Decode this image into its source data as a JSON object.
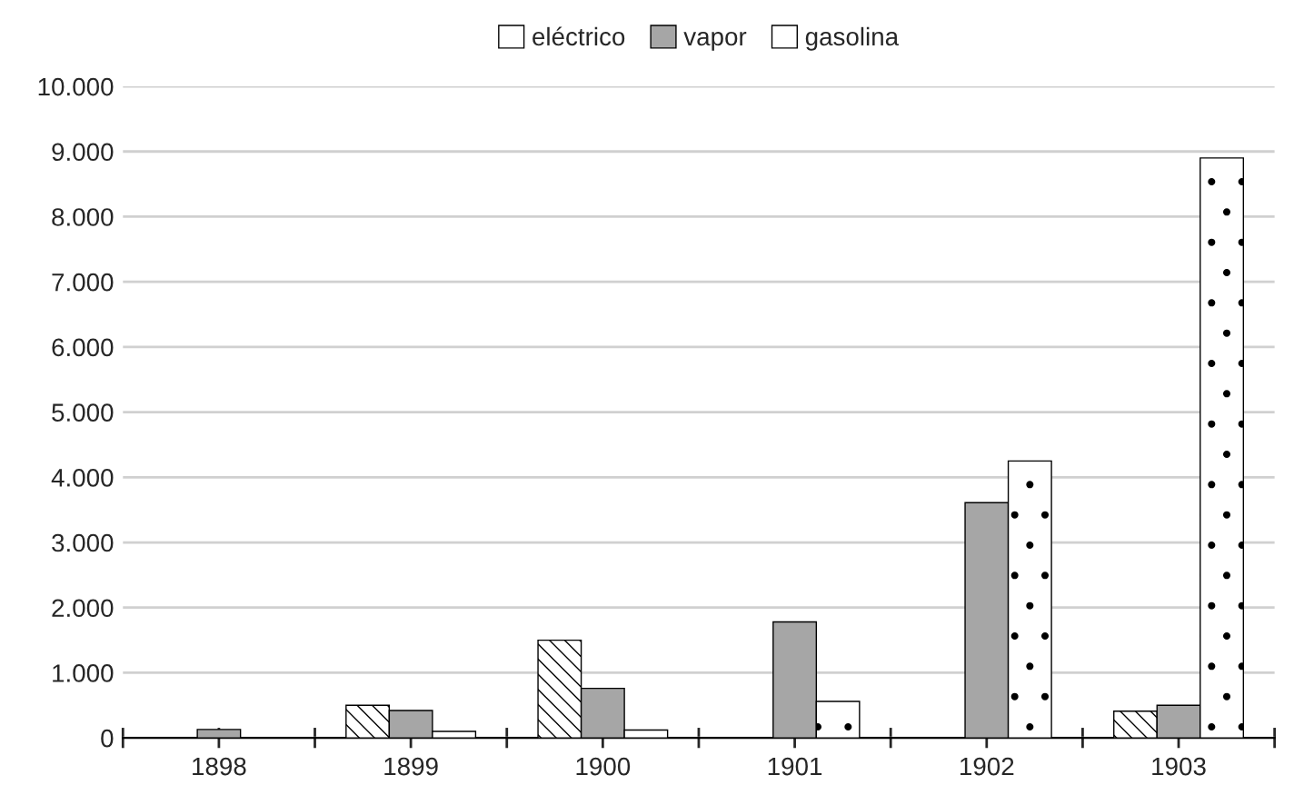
{
  "chart_data": {
    "type": "bar",
    "categories": [
      "1898",
      "1899",
      "1900",
      "1901",
      "1902",
      "1903"
    ],
    "series": [
      {
        "name": "eléctrico",
        "color": "#ffffff",
        "values": [
          null,
          500,
          1500,
          null,
          null,
          410
        ]
      },
      {
        "name": "vapor",
        "color": "#a6a6a6",
        "values": [
          130,
          420,
          760,
          1780,
          3610,
          500
        ]
      },
      {
        "name": "gasolina",
        "color": "#ffffff",
        "values": [
          null,
          100,
          120,
          560,
          4250,
          8900
        ]
      }
    ],
    "ylim": [
      0,
      10000
    ],
    "yticks": [
      {
        "value": 0,
        "label": "0"
      },
      {
        "value": 1000,
        "label": "1.000"
      },
      {
        "value": 2000,
        "label": "2.000"
      },
      {
        "value": 3000,
        "label": "3.000"
      },
      {
        "value": 4000,
        "label": "4.000"
      },
      {
        "value": 5000,
        "label": "5.000"
      },
      {
        "value": 6000,
        "label": "6.000"
      },
      {
        "value": 7000,
        "label": "7.000"
      },
      {
        "value": 8000,
        "label": "8.000"
      },
      {
        "value": 9000,
        "label": "9.000"
      },
      {
        "value": 10000,
        "label": "10.000"
      }
    ],
    "grid": "y",
    "legend": "top"
  }
}
